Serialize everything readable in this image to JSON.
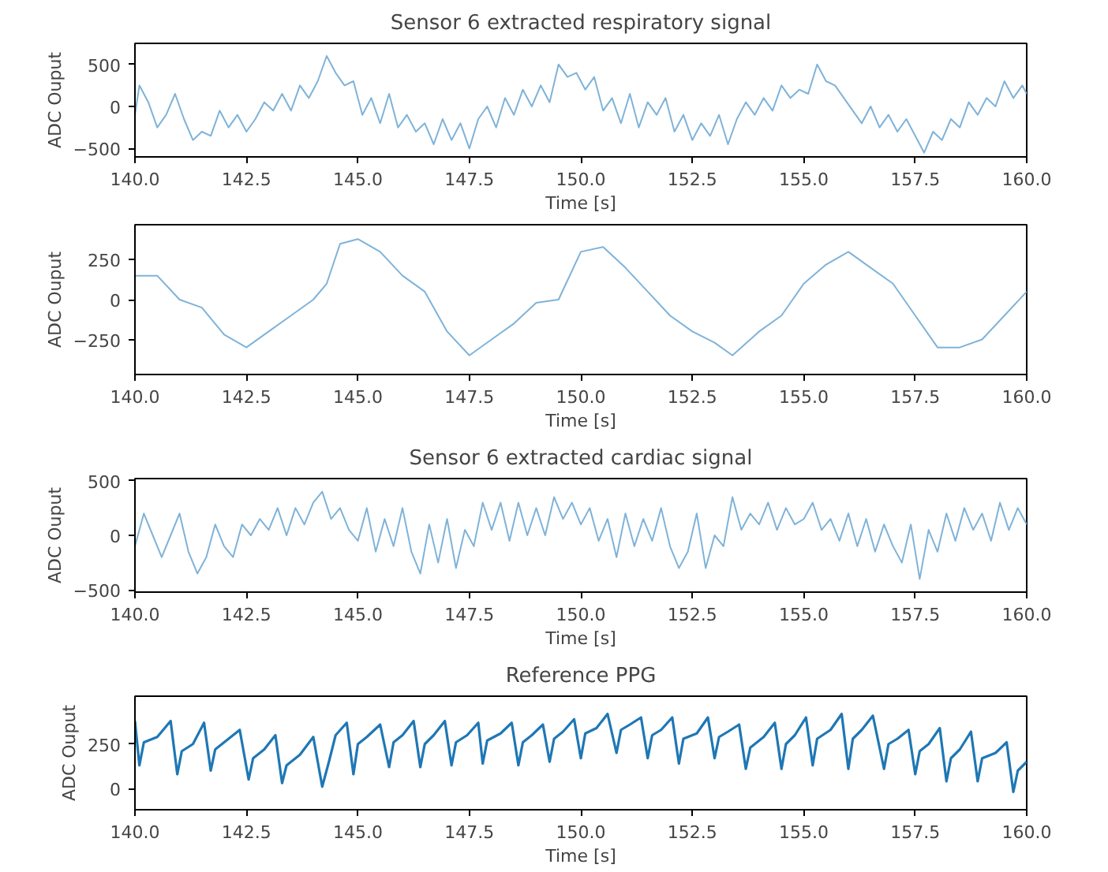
{
  "chart_data": [
    {
      "type": "line",
      "title": "Sensor 6 extracted respiratory signal",
      "xlabel": "Time [s]",
      "ylabel": "ADC Ouput",
      "color": "#7fb3d9",
      "x": [
        140.0,
        140.1,
        140.3,
        140.5,
        140.7,
        140.9,
        141.1,
        141.3,
        141.5,
        141.7,
        141.9,
        142.1,
        142.3,
        142.5,
        142.7,
        142.9,
        143.1,
        143.3,
        143.5,
        143.7,
        143.9,
        144.1,
        144.3,
        144.5,
        144.7,
        144.9,
        145.1,
        145.3,
        145.5,
        145.7,
        145.9,
        146.1,
        146.3,
        146.5,
        146.7,
        146.9,
        147.1,
        147.3,
        147.5,
        147.7,
        147.9,
        148.1,
        148.3,
        148.5,
        148.7,
        148.9,
        149.1,
        149.3,
        149.5,
        149.7,
        149.9,
        150.1,
        150.3,
        150.5,
        150.7,
        150.9,
        151.1,
        151.3,
        151.5,
        151.7,
        151.9,
        152.1,
        152.3,
        152.5,
        152.7,
        152.9,
        153.1,
        153.3,
        153.5,
        153.7,
        153.9,
        154.1,
        154.3,
        154.5,
        154.7,
        154.9,
        155.1,
        155.3,
        155.5,
        155.7,
        155.9,
        156.1,
        156.3,
        156.5,
        156.7,
        156.9,
        157.1,
        157.3,
        157.5,
        157.7,
        157.9,
        158.1,
        158.3,
        158.5,
        158.7,
        158.9,
        159.1,
        159.3,
        159.5,
        159.7,
        159.9,
        160.0
      ],
      "values": [
        -100,
        250,
        50,
        -250,
        -100,
        150,
        -150,
        -400,
        -300,
        -350,
        -50,
        -250,
        -100,
        -300,
        -150,
        50,
        -50,
        150,
        -50,
        250,
        100,
        300,
        600,
        400,
        250,
        300,
        -100,
        100,
        -200,
        150,
        -250,
        -100,
        -300,
        -200,
        -450,
        -150,
        -400,
        -200,
        -500,
        -150,
        0,
        -250,
        100,
        -100,
        200,
        0,
        250,
        50,
        500,
        350,
        400,
        200,
        350,
        -50,
        100,
        -200,
        150,
        -250,
        50,
        -100,
        100,
        -300,
        -100,
        -400,
        -200,
        -350,
        -100,
        -450,
        -150,
        50,
        -100,
        100,
        -50,
        250,
        100,
        200,
        150,
        500,
        300,
        250,
        100,
        -50,
        -200,
        0,
        -250,
        -100,
        -300,
        -150,
        -350,
        -550,
        -300,
        -400,
        -150,
        -250,
        50,
        -100,
        100,
        0,
        300,
        100,
        250,
        150
      ],
      "xlim": [
        140,
        160
      ],
      "ylim": [
        -600,
        750
      ],
      "xticks": [
        {
          "value": 140,
          "label": "140.0"
        },
        {
          "value": 142.5,
          "label": "142.5"
        },
        {
          "value": 145,
          "label": "145.0"
        },
        {
          "value": 147.5,
          "label": "147.5"
        },
        {
          "value": 150,
          "label": "150.0"
        },
        {
          "value": 152.5,
          "label": "152.5"
        },
        {
          "value": 155,
          "label": "155.0"
        },
        {
          "value": 157.5,
          "label": "157.5"
        },
        {
          "value": 160,
          "label": "160.0"
        }
      ],
      "yticks": [
        -500,
        0,
        500
      ]
    },
    {
      "type": "line",
      "xlabel": "Time [s]",
      "ylabel": "ADC Ouput",
      "color": "#7fb3d9",
      "x": [
        140,
        140.5,
        141,
        141.5,
        142,
        142.5,
        143,
        143.5,
        144,
        144.3,
        144.6,
        145,
        145.5,
        146,
        146.5,
        147,
        147.5,
        148,
        148.5,
        149,
        149.5,
        150,
        150.5,
        151,
        151.5,
        152,
        152.5,
        153,
        153.4,
        154,
        154.5,
        155,
        155.5,
        156,
        156.5,
        157,
        157.5,
        158,
        158.5,
        159,
        159.5,
        160
      ],
      "values": [
        150,
        150,
        0,
        -50,
        -220,
        -300,
        -200,
        -100,
        0,
        100,
        350,
        380,
        300,
        150,
        50,
        -200,
        -350,
        -250,
        -150,
        -20,
        0,
        300,
        330,
        200,
        50,
        -100,
        -200,
        -270,
        -350,
        -200,
        -100,
        100,
        220,
        300,
        200,
        100,
        -100,
        -300,
        -300,
        -250,
        -100,
        50
      ],
      "xlim": [
        140,
        160
      ],
      "ylim": [
        -470,
        470
      ],
      "xticks": [
        {
          "value": 140,
          "label": "140.0"
        },
        {
          "value": 142.5,
          "label": "142.5"
        },
        {
          "value": 145,
          "label": "145.0"
        },
        {
          "value": 147.5,
          "label": "147.5"
        },
        {
          "value": 150,
          "label": "150.0"
        },
        {
          "value": 152.5,
          "label": "152.5"
        },
        {
          "value": 155,
          "label": "155.0"
        },
        {
          "value": 157.5,
          "label": "157.5"
        },
        {
          "value": 160,
          "label": "160.0"
        }
      ],
      "yticks": [
        -250,
        0,
        250
      ]
    },
    {
      "type": "line",
      "title": "Sensor 6 extracted cardiac signal",
      "xlabel": "Time [s]",
      "ylabel": "ADC Ouput",
      "color": "#7fb3d9",
      "x": [
        140.0,
        140.2,
        140.4,
        140.6,
        140.8,
        141.0,
        141.2,
        141.4,
        141.6,
        141.8,
        142.0,
        142.2,
        142.4,
        142.6,
        142.8,
        143.0,
        143.2,
        143.4,
        143.6,
        143.8,
        144.0,
        144.2,
        144.4,
        144.6,
        144.8,
        145.0,
        145.2,
        145.4,
        145.6,
        145.8,
        146.0,
        146.2,
        146.4,
        146.6,
        146.8,
        147.0,
        147.2,
        147.4,
        147.6,
        147.8,
        148.0,
        148.2,
        148.4,
        148.6,
        148.8,
        149.0,
        149.2,
        149.4,
        149.6,
        149.8,
        150.0,
        150.2,
        150.4,
        150.6,
        150.8,
        151.0,
        151.2,
        151.4,
        151.6,
        151.8,
        152.0,
        152.2,
        152.4,
        152.6,
        152.8,
        153.0,
        153.2,
        153.4,
        153.6,
        153.8,
        154.0,
        154.2,
        154.4,
        154.6,
        154.8,
        155.0,
        155.2,
        155.4,
        155.6,
        155.8,
        156.0,
        156.2,
        156.4,
        156.6,
        156.8,
        157.0,
        157.2,
        157.4,
        157.6,
        157.8,
        158.0,
        158.2,
        158.4,
        158.6,
        158.8,
        159.0,
        159.2,
        159.4,
        159.6,
        159.8,
        160.0
      ],
      "values": [
        -100,
        200,
        0,
        -200,
        0,
        200,
        -150,
        -350,
        -200,
        100,
        -100,
        -200,
        100,
        0,
        150,
        50,
        250,
        0,
        250,
        100,
        300,
        400,
        150,
        250,
        50,
        -50,
        250,
        -150,
        150,
        -100,
        250,
        -150,
        -350,
        100,
        -250,
        150,
        -300,
        50,
        -100,
        300,
        50,
        300,
        -50,
        300,
        0,
        250,
        0,
        350,
        150,
        300,
        100,
        250,
        -50,
        150,
        -200,
        200,
        -100,
        150,
        -50,
        250,
        -100,
        -300,
        -150,
        200,
        -300,
        0,
        -100,
        350,
        50,
        200,
        100,
        300,
        50,
        250,
        100,
        150,
        300,
        50,
        150,
        -50,
        200,
        -100,
        150,
        -150,
        100,
        -100,
        -250,
        100,
        -400,
        50,
        -150,
        200,
        -50,
        250,
        50,
        200,
        -50,
        300,
        50,
        250,
        100
      ],
      "xlim": [
        140,
        160
      ],
      "ylim": [
        -520,
        520
      ],
      "xticks": [
        {
          "value": 140,
          "label": "140.0"
        },
        {
          "value": 142.5,
          "label": "142.5"
        },
        {
          "value": 145,
          "label": "145.0"
        },
        {
          "value": 147.5,
          "label": "147.5"
        },
        {
          "value": 150,
          "label": "150.0"
        },
        {
          "value": 152.5,
          "label": "152.5"
        },
        {
          "value": 155,
          "label": "155.0"
        },
        {
          "value": 157.5,
          "label": "157.5"
        },
        {
          "value": 160,
          "label": "160.0"
        }
      ],
      "yticks": [
        -500,
        0,
        500
      ]
    },
    {
      "type": "line",
      "title": "Reference PPG",
      "xlabel": "Time [s]",
      "ylabel": "ADC Ouput",
      "color": "#1f77b4",
      "x": [
        140.0,
        140.1,
        140.2,
        140.5,
        140.8,
        140.95,
        141.05,
        141.3,
        141.55,
        141.7,
        141.8,
        142.1,
        142.35,
        142.55,
        142.65,
        142.9,
        143.15,
        143.3,
        143.4,
        143.7,
        144.0,
        144.2,
        144.35,
        144.5,
        144.75,
        144.9,
        145.0,
        145.2,
        145.5,
        145.7,
        145.8,
        146.0,
        146.25,
        146.4,
        146.5,
        146.7,
        146.95,
        147.1,
        147.2,
        147.45,
        147.7,
        147.8,
        147.9,
        148.2,
        148.45,
        148.6,
        148.7,
        148.9,
        149.15,
        149.3,
        149.4,
        149.6,
        149.85,
        150.0,
        150.1,
        150.35,
        150.6,
        150.8,
        150.9,
        151.1,
        151.35,
        151.5,
        151.6,
        151.8,
        152.05,
        152.2,
        152.3,
        152.6,
        152.85,
        153.0,
        153.1,
        153.3,
        153.55,
        153.7,
        153.8,
        154.1,
        154.35,
        154.5,
        154.6,
        154.8,
        155.05,
        155.2,
        155.3,
        155.6,
        155.85,
        156.0,
        156.1,
        156.3,
        156.55,
        156.8,
        156.9,
        157.1,
        157.35,
        157.5,
        157.6,
        157.8,
        158.05,
        158.2,
        158.3,
        158.5,
        158.75,
        158.9,
        159.0,
        159.3,
        159.55,
        159.7,
        159.8,
        160.0
      ],
      "values": [
        380,
        130,
        260,
        290,
        380,
        80,
        210,
        250,
        370,
        100,
        220,
        280,
        330,
        50,
        170,
        220,
        300,
        30,
        130,
        190,
        290,
        10,
        150,
        300,
        370,
        80,
        250,
        290,
        360,
        120,
        260,
        300,
        380,
        120,
        250,
        300,
        380,
        130,
        260,
        300,
        370,
        140,
        270,
        310,
        370,
        130,
        260,
        300,
        360,
        150,
        280,
        320,
        390,
        170,
        310,
        340,
        420,
        200,
        330,
        360,
        400,
        170,
        300,
        330,
        400,
        140,
        280,
        310,
        400,
        170,
        290,
        320,
        360,
        110,
        230,
        290,
        370,
        110,
        250,
        300,
        400,
        130,
        280,
        330,
        420,
        110,
        280,
        330,
        410,
        110,
        250,
        280,
        330,
        80,
        210,
        250,
        340,
        40,
        170,
        220,
        320,
        40,
        170,
        200,
        260,
        -20,
        100,
        150
      ],
      "xlim": [
        140,
        160
      ],
      "ylim": [
        -120,
        520
      ],
      "xticks": [
        {
          "value": 140,
          "label": "140.0"
        },
        {
          "value": 142.5,
          "label": "142.5"
        },
        {
          "value": 145,
          "label": "145.0"
        },
        {
          "value": 147.5,
          "label": "147.5"
        },
        {
          "value": 150,
          "label": "150.0"
        },
        {
          "value": 152.5,
          "label": "152.5"
        },
        {
          "value": 155,
          "label": "155.0"
        },
        {
          "value": 157.5,
          "label": "157.5"
        },
        {
          "value": 160,
          "label": "160.0"
        }
      ],
      "yticks": [
        0,
        250
      ]
    }
  ]
}
